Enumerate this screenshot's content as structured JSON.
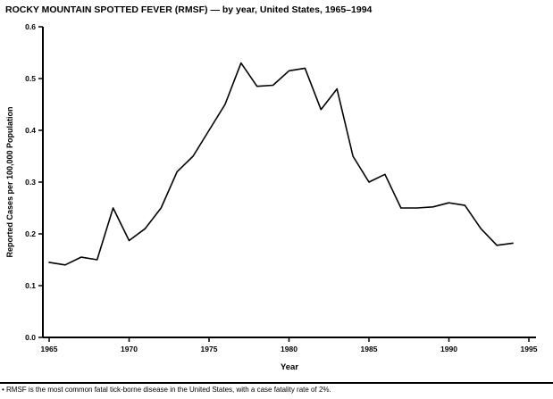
{
  "chart_data": {
    "type": "line",
    "title": "ROCKY MOUNTAIN SPOTTED FEVER (RMSF) — by year, United States, 1965–1994",
    "xlabel": "Year",
    "ylabel": "Reported Cases per 100,000 Population",
    "xlim": [
      1965,
      1995
    ],
    "ylim": [
      0,
      0.6
    ],
    "xticks": [
      1965,
      1970,
      1975,
      1980,
      1985,
      1990,
      1995
    ],
    "yticks": [
      0.0,
      0.1,
      0.2,
      0.3,
      0.4,
      0.5,
      0.6
    ],
    "grid": false,
    "legend": "none",
    "line_color": "#000000",
    "x": [
      1965,
      1966,
      1967,
      1968,
      1969,
      1970,
      1971,
      1972,
      1973,
      1974,
      1975,
      1976,
      1977,
      1978,
      1979,
      1980,
      1981,
      1982,
      1983,
      1984,
      1985,
      1986,
      1987,
      1988,
      1989,
      1990,
      1991,
      1992,
      1993,
      1994
    ],
    "values": [
      0.145,
      0.14,
      0.155,
      0.15,
      0.25,
      0.187,
      0.21,
      0.25,
      0.32,
      0.35,
      0.4,
      0.45,
      0.53,
      0.485,
      0.487,
      0.515,
      0.52,
      0.44,
      0.48,
      0.35,
      0.3,
      0.315,
      0.25,
      0.25,
      0.252,
      0.26,
      0.255,
      0.21,
      0.178,
      0.182
    ]
  },
  "footnote": "• RMSF is the most common fatal tick-borne disease in the United States, with a case fatality rate of 2%."
}
